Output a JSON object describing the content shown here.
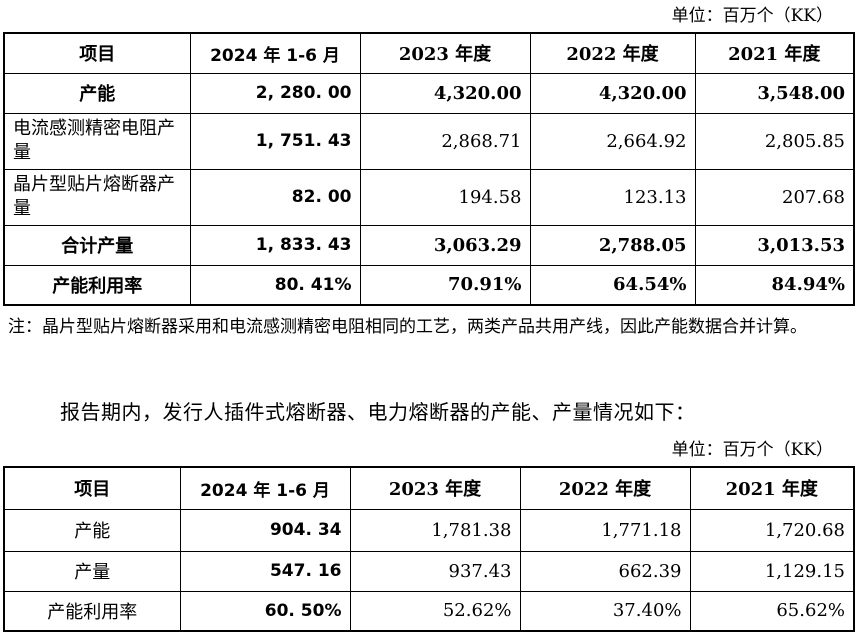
{
  "table1": {
    "unit": "单位：百万个（KK）",
    "headers": [
      "项目",
      "2024 年 1-6 月",
      "2023 年度",
      "2022 年度",
      "2021 年度"
    ],
    "rows": [
      {
        "label": "产能",
        "v2024": "2, 280. 00",
        "v2023": "4,320.00",
        "v2022": "4,320.00",
        "v2021": "3,548.00"
      },
      {
        "label": "电流感测精密电阻产量",
        "v2024": "1, 751. 43",
        "v2023": "2,868.71",
        "v2022": "2,664.92",
        "v2021": "2,805.85"
      },
      {
        "label": "晶片型贴片熔断器产量",
        "v2024": "82. 00",
        "v2023": "194.58",
        "v2022": "123.13",
        "v2021": "207.68"
      },
      {
        "label": "合计产量",
        "v2024": "1, 833. 43",
        "v2023": "3,063.29",
        "v2022": "2,788.05",
        "v2021": "3,013.53"
      },
      {
        "label": "产能利用率",
        "v2024": "80. 41%",
        "v2023": "70.91%",
        "v2022": "64.54%",
        "v2021": "84.94%"
      }
    ]
  },
  "note": "注：晶片型贴片熔断器采用和电流感测精密电阻相同的工艺，两类产品共用产线，因此产能数据合并计算。",
  "paragraph": "报告期内，发行人插件式熔断器、电力熔断器的产能、产量情况如下：",
  "table2": {
    "unit": "单位：百万个（KK）",
    "headers": [
      "项目",
      "2024 年 1-6 月",
      "2023 年度",
      "2022 年度",
      "2021 年度"
    ],
    "rows": [
      {
        "label": "产能",
        "v2024": "904. 34",
        "v2023": "1,781.38",
        "v2022": "1,771.18",
        "v2021": "1,720.68"
      },
      {
        "label": "产量",
        "v2024": "547. 16",
        "v2023": "937.43",
        "v2022": "662.39",
        "v2021": "1,129.15"
      },
      {
        "label": "产能利用率",
        "v2024": "60. 50%",
        "v2023": "52.62%",
        "v2022": "37.40%",
        "v2021": "65.62%"
      }
    ]
  }
}
